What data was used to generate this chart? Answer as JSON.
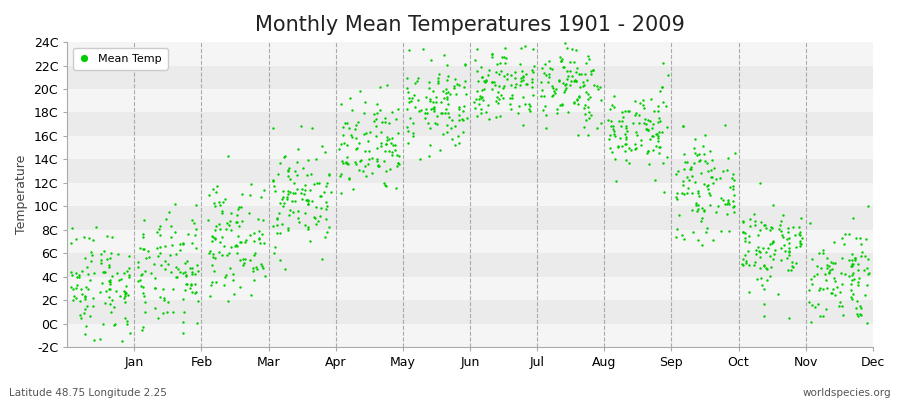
{
  "title": "Monthly Mean Temperatures 1901 - 2009",
  "ylabel": "Temperature",
  "xlabel_bottom_left": "Latitude 48.75 Longitude 2.25",
  "xlabel_bottom_right": "worldspecies.org",
  "ylim": [
    -2,
    24
  ],
  "yticks": [
    -2,
    0,
    2,
    4,
    6,
    8,
    10,
    12,
    14,
    16,
    18,
    20,
    22,
    24
  ],
  "months": [
    "Jan",
    "Feb",
    "Mar",
    "Apr",
    "May",
    "Jun",
    "Jul",
    "Aug",
    "Sep",
    "Oct",
    "Nov",
    "Dec"
  ],
  "dot_color": "#00CC00",
  "dot_size": 3,
  "background_color": "#EBEBEB",
  "band_color_light": "#F5F5F5",
  "legend_label": "Mean Temp",
  "years": 109,
  "monthly_means": [
    3.5,
    4.2,
    7.2,
    10.8,
    14.8,
    18.5,
    20.5,
    20.2,
    16.5,
    11.5,
    6.5,
    4.2
  ],
  "monthly_stds": [
    2.5,
    2.5,
    2.3,
    2.3,
    2.2,
    2.0,
    1.8,
    1.8,
    1.8,
    2.0,
    2.0,
    2.2
  ],
  "title_fontsize": 15,
  "axis_fontsize": 9,
  "legend_fontsize": 8,
  "dashed_color": "#999999"
}
